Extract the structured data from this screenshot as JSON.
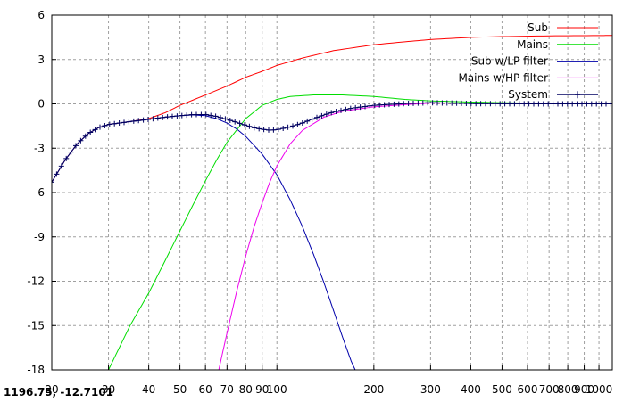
{
  "coordinate_readout": "1196.75, -12.7101",
  "colors": {
    "sub": "#ff0000",
    "mains": "#00dd00",
    "sub_lp": "#0000aa",
    "mains_hp": "#ee00ee",
    "system": "#000060",
    "grid": "#a0a0a0"
  },
  "chart_data": {
    "type": "line",
    "x_scale": "log",
    "xlim": [
      20,
      1100
    ],
    "ylim": [
      -18,
      6
    ],
    "grid": true,
    "legend_position": "top-right",
    "x_ticks": [
      20,
      30,
      40,
      50,
      60,
      70,
      80,
      90,
      100,
      200,
      300,
      400,
      500,
      600,
      700,
      800,
      900,
      1000
    ],
    "x_tick_labels": [
      "20",
      "30",
      "40",
      "50",
      "60",
      "70",
      "80",
      "90",
      "100",
      "200",
      "300",
      "400",
      "500",
      "600",
      "700",
      "800",
      "900",
      "1000"
    ],
    "y_ticks": [
      6,
      3,
      0,
      -3,
      -6,
      -9,
      -12,
      -15,
      -18
    ],
    "y_tick_labels": [
      "6",
      "3",
      "0",
      "-3",
      "-6",
      "-9",
      "-12",
      "-15",
      "-18"
    ],
    "series": [
      {
        "name": "Sub",
        "color": "#ff0000",
        "style": "line",
        "points": [
          [
            20,
            -5.3
          ],
          [
            22,
            -3.8
          ],
          [
            24,
            -2.7
          ],
          [
            26,
            -2.0
          ],
          [
            28,
            -1.6
          ],
          [
            30,
            -1.4
          ],
          [
            35,
            -1.2
          ],
          [
            40,
            -1.0
          ],
          [
            45,
            -0.6
          ],
          [
            50,
            -0.1
          ],
          [
            60,
            0.6
          ],
          [
            70,
            1.2
          ],
          [
            80,
            1.8
          ],
          [
            90,
            2.2
          ],
          [
            100,
            2.6
          ],
          [
            120,
            3.1
          ],
          [
            150,
            3.6
          ],
          [
            200,
            4.0
          ],
          [
            250,
            4.2
          ],
          [
            300,
            4.35
          ],
          [
            400,
            4.5
          ],
          [
            500,
            4.55
          ],
          [
            700,
            4.6
          ],
          [
            1000,
            4.62
          ],
          [
            1100,
            4.63
          ]
        ]
      },
      {
        "name": "Mains",
        "color": "#00dd00",
        "style": "line",
        "points": [
          [
            30,
            -18
          ],
          [
            35,
            -15
          ],
          [
            40,
            -12.8
          ],
          [
            45,
            -10.6
          ],
          [
            50,
            -8.6
          ],
          [
            55,
            -6.8
          ],
          [
            60,
            -5.2
          ],
          [
            65,
            -3.8
          ],
          [
            70,
            -2.6
          ],
          [
            80,
            -1.0
          ],
          [
            90,
            -0.1
          ],
          [
            100,
            0.3
          ],
          [
            110,
            0.5
          ],
          [
            130,
            0.6
          ],
          [
            160,
            0.6
          ],
          [
            200,
            0.5
          ],
          [
            250,
            0.3
          ],
          [
            300,
            0.2
          ],
          [
            400,
            0.12
          ],
          [
            600,
            0.05
          ],
          [
            1000,
            0.02
          ],
          [
            1100,
            0.01
          ]
        ]
      },
      {
        "name": "Sub w/LP filter",
        "color": "#0000aa",
        "style": "line",
        "points": [
          [
            20,
            -5.3
          ],
          [
            22,
            -3.8
          ],
          [
            24,
            -2.7
          ],
          [
            26,
            -2.0
          ],
          [
            28,
            -1.6
          ],
          [
            30,
            -1.4
          ],
          [
            35,
            -1.2
          ],
          [
            40,
            -1.05
          ],
          [
            45,
            -0.9
          ],
          [
            50,
            -0.8
          ],
          [
            55,
            -0.75
          ],
          [
            60,
            -0.8
          ],
          [
            65,
            -1.0
          ],
          [
            70,
            -1.3
          ],
          [
            75,
            -1.7
          ],
          [
            80,
            -2.2
          ],
          [
            90,
            -3.4
          ],
          [
            100,
            -4.8
          ],
          [
            110,
            -6.5
          ],
          [
            120,
            -8.3
          ],
          [
            130,
            -10.2
          ],
          [
            140,
            -12.1
          ],
          [
            150,
            -14.0
          ],
          [
            160,
            -15.8
          ],
          [
            170,
            -17.4
          ],
          [
            175,
            -18
          ]
        ]
      },
      {
        "name": "Mains w/HP filter",
        "color": "#ee00ee",
        "style": "line",
        "points": [
          [
            66,
            -18
          ],
          [
            70,
            -15.5
          ],
          [
            75,
            -12.7
          ],
          [
            80,
            -10.3
          ],
          [
            85,
            -8.3
          ],
          [
            90,
            -6.7
          ],
          [
            95,
            -5.3
          ],
          [
            100,
            -4.2
          ],
          [
            110,
            -2.7
          ],
          [
            120,
            -1.8
          ],
          [
            140,
            -0.9
          ],
          [
            160,
            -0.5
          ],
          [
            200,
            -0.2
          ],
          [
            250,
            -0.05
          ],
          [
            300,
            0.05
          ],
          [
            400,
            0.05
          ],
          [
            600,
            0.02
          ],
          [
            1000,
            0.01
          ],
          [
            1100,
            0.0
          ]
        ]
      },
      {
        "name": "System",
        "color": "#000060",
        "style": "linespoints",
        "points": [
          [
            20,
            -5.3
          ],
          [
            22,
            -3.8
          ],
          [
            24,
            -2.7
          ],
          [
            26,
            -2.0
          ],
          [
            28,
            -1.6
          ],
          [
            30,
            -1.4
          ],
          [
            35,
            -1.2
          ],
          [
            40,
            -1.05
          ],
          [
            45,
            -0.9
          ],
          [
            50,
            -0.8
          ],
          [
            55,
            -0.72
          ],
          [
            60,
            -0.72
          ],
          [
            65,
            -0.85
          ],
          [
            70,
            -1.05
          ],
          [
            75,
            -1.25
          ],
          [
            80,
            -1.45
          ],
          [
            85,
            -1.62
          ],
          [
            90,
            -1.72
          ],
          [
            95,
            -1.78
          ],
          [
            100,
            -1.75
          ],
          [
            110,
            -1.55
          ],
          [
            120,
            -1.3
          ],
          [
            130,
            -1.0
          ],
          [
            140,
            -0.75
          ],
          [
            150,
            -0.55
          ],
          [
            170,
            -0.3
          ],
          [
            200,
            -0.1
          ],
          [
            250,
            0.02
          ],
          [
            300,
            0.08
          ],
          [
            350,
            0.05
          ],
          [
            400,
            0.02
          ],
          [
            500,
            0.01
          ],
          [
            700,
            0.0
          ],
          [
            1000,
            0.0
          ],
          [
            1100,
            0.0
          ]
        ]
      }
    ]
  }
}
